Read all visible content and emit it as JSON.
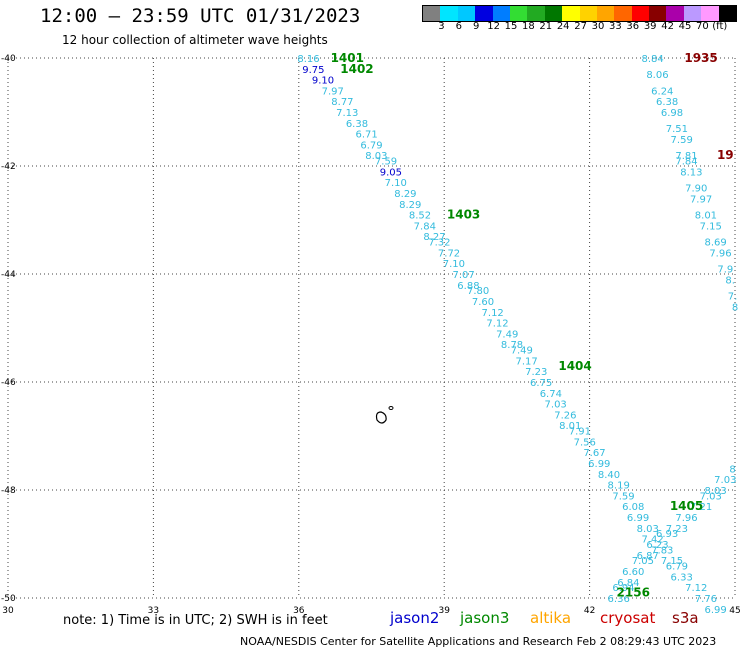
{
  "title": "12:00 — 23:59 UTC 01/31/2023",
  "subtitle": "12 hour collection of altimeter wave heights",
  "color_scale": {
    "colors": [
      "#808080",
      "#00e5ff",
      "#00c8ff",
      "#0000e0",
      "#007dff",
      "#33dd33",
      "#22aa22",
      "#007700",
      "#ffff00",
      "#ffd200",
      "#ffa500",
      "#ff6600",
      "#ff0000",
      "#880000",
      "#aa00aa",
      "#bb99ff",
      "#ff99ff",
      "#000000"
    ],
    "labels": [
      "3",
      "6",
      "9",
      "12",
      "15",
      "18",
      "21",
      "24",
      "27",
      "30",
      "33",
      "36",
      "39",
      "42",
      "45",
      "70",
      "(ft)"
    ]
  },
  "map": {
    "lon_ticks": [
      "30",
      "33",
      "36",
      "39",
      "42",
      "45"
    ],
    "lat_ticks": [
      "-40",
      "-42",
      "-44",
      "-46",
      "-48",
      "-50"
    ],
    "label_color": "#33bbdd",
    "time_color": "#008800",
    "pass1": {
      "times": [
        {
          "t": "1401",
          "lon": 37.0,
          "lat": -40.0,
          "color": "#008800"
        },
        {
          "t": "1402",
          "lon": 37.2,
          "lat": -40.2,
          "color": "#008800"
        },
        {
          "t": "1403",
          "lon": 39.4,
          "lat": -42.9,
          "color": "#008800"
        },
        {
          "t": "1404",
          "lon": 41.7,
          "lat": -45.7,
          "color": "#008800"
        },
        {
          "t": "1405",
          "lon": 44.0,
          "lat": -48.3,
          "color": "#008800"
        },
        {
          "t": "2156",
          "lon": 42.9,
          "lat": -49.9,
          "color": "#008800"
        }
      ],
      "values": [
        {
          "v": "8.16",
          "lon": 36.2,
          "lat": -40.0,
          "color": "#33bbdd"
        },
        {
          "v": "9.75",
          "lon": 36.3,
          "lat": -40.2,
          "color": "#0000cc"
        },
        {
          "v": "9.10",
          "lon": 36.5,
          "lat": -40.4,
          "color": "#0000cc"
        },
        {
          "v": "7.97",
          "lon": 36.7,
          "lat": -40.6,
          "color": "#33bbdd"
        },
        {
          "v": "8.77",
          "lon": 36.9,
          "lat": -40.8,
          "color": "#33bbdd"
        },
        {
          "v": "7.13",
          "lon": 37.0,
          "lat": -41.0,
          "color": "#33bbdd"
        },
        {
          "v": "6.38",
          "lon": 37.2,
          "lat": -41.2,
          "color": "#33bbdd"
        },
        {
          "v": "6.71",
          "lon": 37.4,
          "lat": -41.4,
          "color": "#33bbdd"
        },
        {
          "v": "6.79",
          "lon": 37.5,
          "lat": -41.6,
          "color": "#33bbdd"
        },
        {
          "v": "8.03",
          "lon": 37.6,
          "lat": -41.8,
          "color": "#33bbdd"
        },
        {
          "v": "7.59",
          "lon": 37.8,
          "lat": -41.9,
          "color": "#33bbdd"
        },
        {
          "v": "9.05",
          "lon": 37.9,
          "lat": -42.1,
          "color": "#0000cc"
        },
        {
          "v": "7.10",
          "lon": 38.0,
          "lat": -42.3,
          "color": "#33bbdd"
        },
        {
          "v": "8.29",
          "lon": 38.2,
          "lat": -42.5,
          "color": "#33bbdd"
        },
        {
          "v": "8.29",
          "lon": 38.3,
          "lat": -42.7,
          "color": "#33bbdd"
        },
        {
          "v": "8.52",
          "lon": 38.5,
          "lat": -42.9,
          "color": "#33bbdd"
        },
        {
          "v": "7.84",
          "lon": 38.6,
          "lat": -43.1,
          "color": "#33bbdd"
        },
        {
          "v": "8.27",
          "lon": 38.8,
          "lat": -43.3,
          "color": "#33bbdd"
        },
        {
          "v": "7.32",
          "lon": 38.9,
          "lat": -43.4,
          "color": "#33bbdd"
        },
        {
          "v": "7.72",
          "lon": 39.1,
          "lat": -43.6,
          "color": "#33bbdd"
        },
        {
          "v": "7.10",
          "lon": 39.2,
          "lat": -43.8,
          "color": "#33bbdd"
        },
        {
          "v": "7.07",
          "lon": 39.4,
          "lat": -44.0,
          "color": "#33bbdd"
        },
        {
          "v": "6.88",
          "lon": 39.5,
          "lat": -44.2,
          "color": "#33bbdd"
        },
        {
          "v": "7.80",
          "lon": 39.7,
          "lat": -44.3,
          "color": "#33bbdd"
        },
        {
          "v": "7.60",
          "lon": 39.8,
          "lat": -44.5,
          "color": "#33bbdd"
        },
        {
          "v": "7.12",
          "lon": 40.0,
          "lat": -44.7,
          "color": "#33bbdd"
        },
        {
          "v": "7.12",
          "lon": 40.1,
          "lat": -44.9,
          "color": "#33bbdd"
        },
        {
          "v": "7.49",
          "lon": 40.3,
          "lat": -45.1,
          "color": "#33bbdd"
        },
        {
          "v": "8.78",
          "lon": 40.4,
          "lat": -45.3,
          "color": "#33bbdd"
        },
        {
          "v": "7.49",
          "lon": 40.6,
          "lat": -45.4,
          "color": "#33bbdd"
        },
        {
          "v": "7.17",
          "lon": 40.7,
          "lat": -45.6,
          "color": "#33bbdd"
        },
        {
          "v": "7.23",
          "lon": 40.9,
          "lat": -45.8,
          "color": "#33bbdd"
        },
        {
          "v": "6.75",
          "lon": 41.0,
          "lat": -46.0,
          "color": "#33bbdd"
        },
        {
          "v": "6.74",
          "lon": 41.2,
          "lat": -46.2,
          "color": "#33bbdd"
        },
        {
          "v": "7.03",
          "lon": 41.3,
          "lat": -46.4,
          "color": "#33bbdd"
        },
        {
          "v": "7.26",
          "lon": 41.5,
          "lat": -46.6,
          "color": "#33bbdd"
        },
        {
          "v": "8.01",
          "lon": 41.6,
          "lat": -46.8,
          "color": "#33bbdd"
        },
        {
          "v": "7.91",
          "lon": 41.8,
          "lat": -46.9,
          "color": "#33bbdd"
        },
        {
          "v": "7.56",
          "lon": 41.9,
          "lat": -47.1,
          "color": "#33bbdd"
        },
        {
          "v": "7.67",
          "lon": 42.1,
          "lat": -47.3,
          "color": "#33bbdd"
        },
        {
          "v": "6.99",
          "lon": 42.2,
          "lat": -47.5,
          "color": "#33bbdd"
        },
        {
          "v": "8.40",
          "lon": 42.4,
          "lat": -47.7,
          "color": "#33bbdd"
        },
        {
          "v": "8.19",
          "lon": 42.6,
          "lat": -47.9,
          "color": "#33bbdd"
        },
        {
          "v": "7.59",
          "lon": 42.7,
          "lat": -48.1,
          "color": "#33bbdd"
        },
        {
          "v": "6.08",
          "lon": 42.9,
          "lat": -48.3,
          "color": "#33bbdd"
        },
        {
          "v": "6.99",
          "lon": 43.0,
          "lat": -48.5,
          "color": "#33bbdd"
        },
        {
          "v": "8.03",
          "lon": 43.2,
          "lat": -48.7,
          "color": "#33bbdd"
        },
        {
          "v": "7.42",
          "lon": 43.3,
          "lat": -48.9,
          "color": "#33bbdd"
        },
        {
          "v": "7.83",
          "lon": 43.5,
          "lat": -49.1,
          "color": "#33bbdd"
        },
        {
          "v": "7.15",
          "lon": 43.7,
          "lat": -49.3,
          "color": "#33bbdd"
        },
        {
          "v": "6.79",
          "lon": 43.8,
          "lat": -49.4,
          "color": "#33bbdd"
        },
        {
          "v": "6.33",
          "lon": 43.9,
          "lat": -49.6,
          "color": "#33bbdd"
        },
        {
          "v": "7.12",
          "lon": 44.2,
          "lat": -49.8,
          "color": "#33bbdd"
        },
        {
          "v": "7.76",
          "lon": 44.4,
          "lat": -50.0,
          "color": "#33bbdd"
        },
        {
          "v": "6.99",
          "lon": 44.6,
          "lat": -50.2,
          "color": "#33bbdd"
        }
      ]
    },
    "pass2": {
      "times": [
        {
          "t": "1935",
          "lon": 44.3,
          "lat": -40.0,
          "color": "#880000"
        },
        {
          "t": "19",
          "lon": 44.8,
          "lat": -41.8,
          "color": "#880000"
        }
      ],
      "values": [
        {
          "v": "8.84",
          "lon": 43.3,
          "lat": -40.0,
          "color": "#33bbdd"
        },
        {
          "v": "8.06",
          "lon": 43.4,
          "lat": -40.3,
          "color": "#33bbdd"
        },
        {
          "v": "6.24",
          "lon": 43.5,
          "lat": -40.6,
          "color": "#33bbdd"
        },
        {
          "v": "6.38",
          "lon": 43.6,
          "lat": -40.8,
          "color": "#33bbdd"
        },
        {
          "v": "6.98",
          "lon": 43.7,
          "lat": -41.0,
          "color": "#33bbdd"
        },
        {
          "v": "7.51",
          "lon": 43.8,
          "lat": -41.3,
          "color": "#33bbdd"
        },
        {
          "v": "7.59",
          "lon": 43.9,
          "lat": -41.5,
          "color": "#33bbdd"
        },
        {
          "v": "7.81",
          "lon": 44.0,
          "lat": -41.8,
          "color": "#33bbdd"
        },
        {
          "v": "7.84",
          "lon": 44.0,
          "lat": -41.9,
          "color": "#33bbdd"
        },
        {
          "v": "8.13",
          "lon": 44.1,
          "lat": -42.1,
          "color": "#33bbdd"
        },
        {
          "v": "7.90",
          "lon": 44.2,
          "lat": -42.4,
          "color": "#33bbdd"
        },
        {
          "v": "7.97",
          "lon": 44.3,
          "lat": -42.6,
          "color": "#33bbdd"
        },
        {
          "v": "8.01",
          "lon": 44.4,
          "lat": -42.9,
          "color": "#33bbdd"
        },
        {
          "v": "7.15",
          "lon": 44.5,
          "lat": -43.1,
          "color": "#33bbdd"
        },
        {
          "v": "8.69",
          "lon": 44.6,
          "lat": -43.4,
          "color": "#33bbdd"
        },
        {
          "v": "7.96",
          "lon": 44.7,
          "lat": -43.6,
          "color": "#33bbdd"
        },
        {
          "v": "7.9",
          "lon": 44.8,
          "lat": -43.9,
          "color": "#33bbdd"
        },
        {
          "v": "8.",
          "lon": 44.9,
          "lat": -44.1,
          "color": "#33bbdd"
        },
        {
          "v": "7.",
          "lon": 44.95,
          "lat": -44.4,
          "color": "#33bbdd"
        },
        {
          "v": "8",
          "lon": 45.0,
          "lat": -44.6,
          "color": "#33bbdd"
        }
      ]
    },
    "pass3": {
      "values": [
        {
          "v": "6.36",
          "lon": 42.6,
          "lat": -50.0,
          "color": "#33bbdd"
        },
        {
          "v": "6.94",
          "lon": 42.7,
          "lat": -49.8,
          "color": "#33bbdd"
        },
        {
          "v": "6.84",
          "lon": 42.8,
          "lat": -49.7,
          "color": "#33bbdd"
        },
        {
          "v": "6.60",
          "lon": 42.9,
          "lat": -49.5,
          "color": "#33bbdd"
        },
        {
          "v": "7.05",
          "lon": 43.1,
          "lat": -49.3,
          "color": "#33bbdd"
        },
        {
          "v": "6.87",
          "lon": 43.2,
          "lat": -49.2,
          "color": "#33bbdd"
        },
        {
          "v": "6.23",
          "lon": 43.4,
          "lat": -49.0,
          "color": "#33bbdd"
        },
        {
          "v": "6.93",
          "lon": 43.6,
          "lat": -48.8,
          "color": "#33bbdd"
        },
        {
          "v": "7.23",
          "lon": 43.8,
          "lat": -48.7,
          "color": "#33bbdd"
        },
        {
          "v": "7.96",
          "lon": 44.0,
          "lat": -48.5,
          "color": "#33bbdd"
        },
        {
          "v": "7.21",
          "lon": 44.3,
          "lat": -48.3,
          "color": "#33bbdd"
        },
        {
          "v": "7.03",
          "lon": 44.5,
          "lat": -48.1,
          "color": "#33bbdd"
        },
        {
          "v": "8.03",
          "lon": 44.6,
          "lat": -48.0,
          "color": "#33bbdd"
        },
        {
          "v": "7.03",
          "lon": 44.8,
          "lat": -47.8,
          "color": "#33bbdd"
        },
        {
          "v": "8",
          "lon": 44.95,
          "lat": -47.6,
          "color": "#33bbdd"
        }
      ]
    }
  },
  "note": "note: 1) Time is in UTC; 2) SWH is in feet",
  "satellites": [
    {
      "name": "jason2",
      "color": "#0000cc"
    },
    {
      "name": "jason3",
      "color": "#008800"
    },
    {
      "name": "altika",
      "color": "#ffa500"
    },
    {
      "name": "cryosat",
      "color": "#cc0000"
    },
    {
      "name": "s3a",
      "color": "#880000"
    }
  ],
  "footer": "NOAA/NESDIS Center for Satellite Applications and Research    Feb  2 08:29:43 UTC 2023"
}
